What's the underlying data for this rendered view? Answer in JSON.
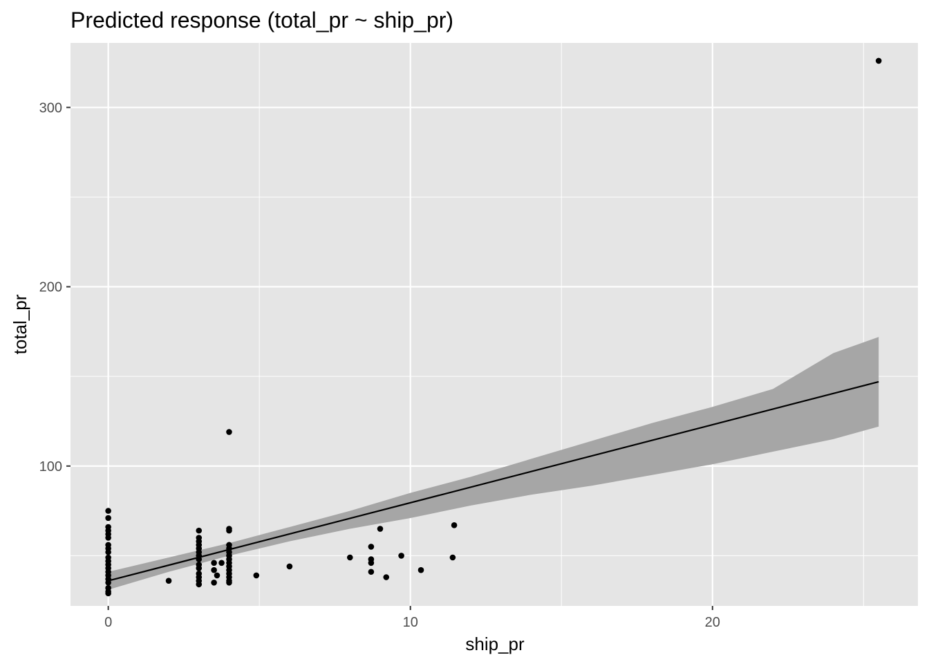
{
  "chart_data": {
    "type": "scatter",
    "title": "Predicted response (total_pr ~ ship_pr)",
    "xlabel": "ship_pr",
    "ylabel": "total_pr",
    "xlim": [
      -1.25,
      26.8
    ],
    "ylim": [
      22,
      336
    ],
    "x_ticks": [
      0,
      10,
      20
    ],
    "x_tick_labels": [
      "0",
      "10",
      "20"
    ],
    "x_minor_ticks": [
      5,
      15,
      25
    ],
    "y_ticks": [
      100,
      200,
      300
    ],
    "y_tick_labels": [
      "100",
      "200",
      "300"
    ],
    "y_minor_ticks": [
      50,
      150,
      250
    ],
    "grid": true,
    "legend": "none",
    "colors": {
      "panel": "#e5e5e5",
      "grid": "#ffffff",
      "points": "#000000",
      "fit_line": "#000000",
      "band": "#a6a6a6",
      "tick_label": "#4d4d4d",
      "tick_mark": "#333333"
    },
    "points": [
      {
        "x": 0,
        "y": 75
      },
      {
        "x": 0,
        "y": 71
      },
      {
        "x": 0,
        "y": 66
      },
      {
        "x": 0,
        "y": 64
      },
      {
        "x": 0,
        "y": 62
      },
      {
        "x": 0,
        "y": 60
      },
      {
        "x": 0,
        "y": 56
      },
      {
        "x": 0,
        "y": 54
      },
      {
        "x": 0,
        "y": 52
      },
      {
        "x": 0,
        "y": 49
      },
      {
        "x": 0,
        "y": 47
      },
      {
        "x": 0,
        "y": 45
      },
      {
        "x": 0,
        "y": 43
      },
      {
        "x": 0,
        "y": 41
      },
      {
        "x": 0,
        "y": 39
      },
      {
        "x": 0,
        "y": 37
      },
      {
        "x": 0,
        "y": 35
      },
      {
        "x": 0,
        "y": 32
      },
      {
        "x": 0,
        "y": 30
      },
      {
        "x": 0,
        "y": 29
      },
      {
        "x": 2.0,
        "y": 36
      },
      {
        "x": 3,
        "y": 64
      },
      {
        "x": 3,
        "y": 60
      },
      {
        "x": 3,
        "y": 58
      },
      {
        "x": 3,
        "y": 56
      },
      {
        "x": 3,
        "y": 54
      },
      {
        "x": 3,
        "y": 52
      },
      {
        "x": 3,
        "y": 50
      },
      {
        "x": 3,
        "y": 48
      },
      {
        "x": 3,
        "y": 45
      },
      {
        "x": 3,
        "y": 43
      },
      {
        "x": 3,
        "y": 40
      },
      {
        "x": 3,
        "y": 38
      },
      {
        "x": 3,
        "y": 36
      },
      {
        "x": 3,
        "y": 34
      },
      {
        "x": 3.5,
        "y": 46
      },
      {
        "x": 3.5,
        "y": 42
      },
      {
        "x": 3.5,
        "y": 35
      },
      {
        "x": 3.6,
        "y": 39
      },
      {
        "x": 3.75,
        "y": 46
      },
      {
        "x": 4,
        "y": 119
      },
      {
        "x": 4,
        "y": 65
      },
      {
        "x": 4,
        "y": 64
      },
      {
        "x": 4,
        "y": 56
      },
      {
        "x": 4,
        "y": 54
      },
      {
        "x": 4,
        "y": 52
      },
      {
        "x": 4,
        "y": 50
      },
      {
        "x": 4,
        "y": 48
      },
      {
        "x": 4,
        "y": 46
      },
      {
        "x": 4,
        "y": 44
      },
      {
        "x": 4,
        "y": 42
      },
      {
        "x": 4,
        "y": 40
      },
      {
        "x": 4,
        "y": 38
      },
      {
        "x": 4,
        "y": 36
      },
      {
        "x": 4,
        "y": 35
      },
      {
        "x": 4.9,
        "y": 39
      },
      {
        "x": 6.0,
        "y": 44
      },
      {
        "x": 8.0,
        "y": 49
      },
      {
        "x": 8.7,
        "y": 55
      },
      {
        "x": 8.7,
        "y": 48
      },
      {
        "x": 8.7,
        "y": 46
      },
      {
        "x": 8.7,
        "y": 41
      },
      {
        "x": 9.0,
        "y": 65
      },
      {
        "x": 9.2,
        "y": 38
      },
      {
        "x": 9.7,
        "y": 50
      },
      {
        "x": 10.35,
        "y": 42
      },
      {
        "x": 11.4,
        "y": 49
      },
      {
        "x": 11.45,
        "y": 67
      },
      {
        "x": 25.5,
        "y": 326
      }
    ],
    "fit_line": {
      "x": [
        0,
        25.5
      ],
      "y": [
        36,
        147
      ]
    },
    "confidence_band": {
      "x": [
        0,
        2,
        4,
        6,
        8,
        10,
        12,
        14,
        16,
        18,
        20,
        22,
        24,
        25.5
      ],
      "lower": [
        31,
        41,
        50,
        58,
        65,
        71,
        78,
        84,
        89,
        95,
        101,
        108,
        115,
        122
      ],
      "upper": [
        41,
        49,
        57,
        66,
        75,
        85,
        94,
        104,
        114,
        124,
        133,
        143,
        163,
        172
      ]
    }
  }
}
